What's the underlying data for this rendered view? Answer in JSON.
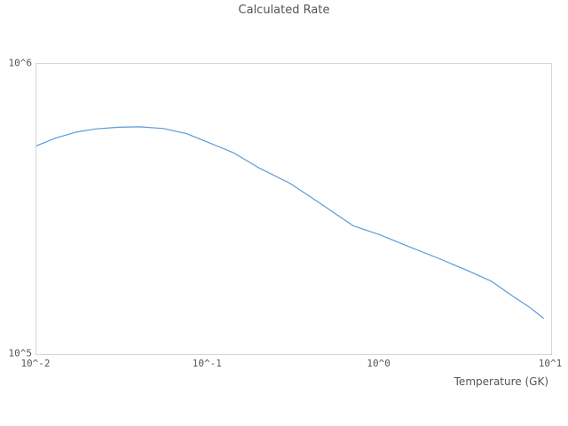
{
  "colors": {
    "line": "#5b9bd5",
    "plot_border": "#d6d6d6",
    "text": "#545454",
    "tick_text": "#555555",
    "background": "#ffffff"
  },
  "chart_data": {
    "type": "line",
    "title": "Calculated Rate",
    "xlabel": "Temperature (GK)",
    "ylabel": "",
    "x_scale": "log",
    "y_scale": "log",
    "xlim": [
      0.01,
      10
    ],
    "ylim": [
      100000,
      1000000
    ],
    "grid": false,
    "legend": false,
    "x_ticks": [
      {
        "label": "10^-2",
        "value": 0.01
      },
      {
        "label": "10^-1",
        "value": 0.1
      },
      {
        "label": "10^0",
        "value": 1
      },
      {
        "label": "10^1",
        "value": 10
      }
    ],
    "y_ticks": [
      {
        "label": "10^5",
        "value": 100000
      },
      {
        "label": "10^6",
        "value": 1000000
      }
    ],
    "series": [
      {
        "name": "Calculated Rate",
        "x": [
          0.01,
          0.013,
          0.017,
          0.022,
          0.03,
          0.04,
          0.055,
          0.075,
          0.1,
          0.14,
          0.2,
          0.3,
          0.45,
          0.7,
          1.0,
          1.5,
          2.2,
          3.2,
          4.5,
          6.0,
          7.5,
          9.0
        ],
        "y": [
          522000,
          556000,
          582000,
          597000,
          605000,
          607000,
          599000,
          575000,
          537000,
          495000,
          437000,
          388000,
          331000,
          277000,
          258000,
          234000,
          214000,
          195000,
          178000,
          158000,
          145000,
          133000
        ]
      }
    ]
  }
}
